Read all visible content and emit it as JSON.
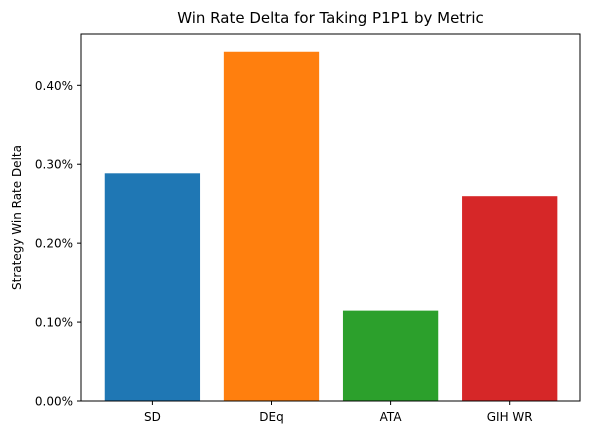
{
  "chart_data": {
    "type": "bar",
    "title": "Win Rate Delta for Taking P1P1 by Metric",
    "xlabel": "",
    "ylabel": "Strategy Win Rate Delta",
    "categories": [
      "SD",
      "DEq",
      "ATA",
      "GIH WR"
    ],
    "values": [
      0.2885,
      0.4425,
      0.1145,
      0.2595
    ],
    "value_unit": "percent",
    "bar_colors": [
      "#1f77b4",
      "#ff7f0e",
      "#2ca02c",
      "#d62728"
    ],
    "ylim": [
      0,
      0.465
    ],
    "yticks": [
      0.0,
      0.1,
      0.2,
      0.3,
      0.4
    ],
    "ytick_labels": [
      "0.00%",
      "0.10%",
      "0.20%",
      "0.30%",
      "0.40%"
    ],
    "grid": false,
    "legend": "none"
  }
}
